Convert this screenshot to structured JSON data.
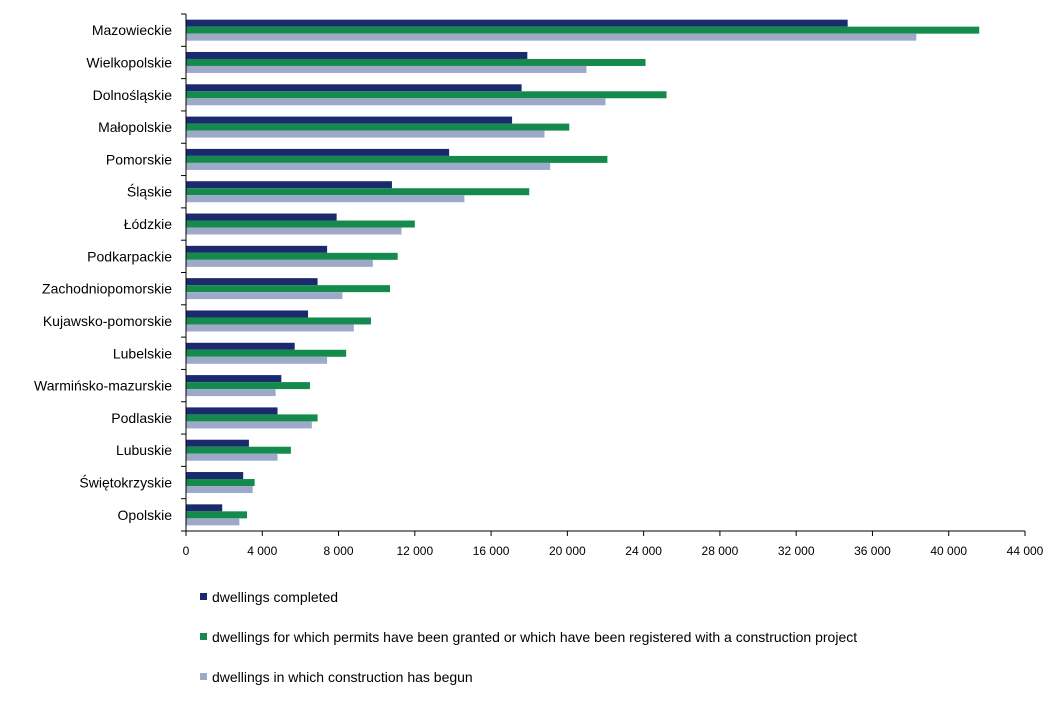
{
  "chart_data": {
    "type": "bar",
    "orientation": "horizontal",
    "categories": [
      "Mazowieckie",
      "Wielkopolskie",
      "Dolnośląskie",
      "Małopolskie",
      "Pomorskie",
      "Śląskie",
      "Łódzkie",
      "Podkarpackie",
      "Zachodniopomorskie",
      "Kujawsko-pomorskie",
      "Lubelskie",
      "Warmińsko-mazurskie",
      "Podlaskie",
      "Lubuskie",
      "Świętokrzyskie",
      "Opolskie"
    ],
    "series": [
      {
        "name": "dwellings completed",
        "color": "#1a2a6c",
        "values": [
          34700,
          17900,
          17600,
          17100,
          13800,
          10800,
          7900,
          7400,
          6900,
          6400,
          5700,
          5000,
          4800,
          3300,
          3000,
          1900
        ]
      },
      {
        "name": "dwellings for which permits have been granted or which have been registered with a construction project",
        "color": "#148a4c",
        "values": [
          41600,
          24100,
          25200,
          20100,
          22100,
          18000,
          12000,
          11100,
          10700,
          9700,
          8400,
          6500,
          6900,
          5500,
          3600,
          3200
        ]
      },
      {
        "name": "dwellings in which construction has begun",
        "color": "#9ea9c9",
        "values": [
          38300,
          21000,
          22000,
          18800,
          19100,
          14600,
          11300,
          9800,
          8200,
          8800,
          7400,
          4700,
          6600,
          4800,
          3500,
          2800
        ]
      }
    ],
    "x_ticks": [
      "0",
      "4 000",
      "8 000",
      "12 000",
      "16 000",
      "20 000",
      "24 000",
      "28 000",
      "32 000",
      "36 000",
      "40 000",
      "44 000"
    ],
    "xlim": [
      0,
      44000
    ],
    "grid": false,
    "legend_position": "bottom"
  }
}
